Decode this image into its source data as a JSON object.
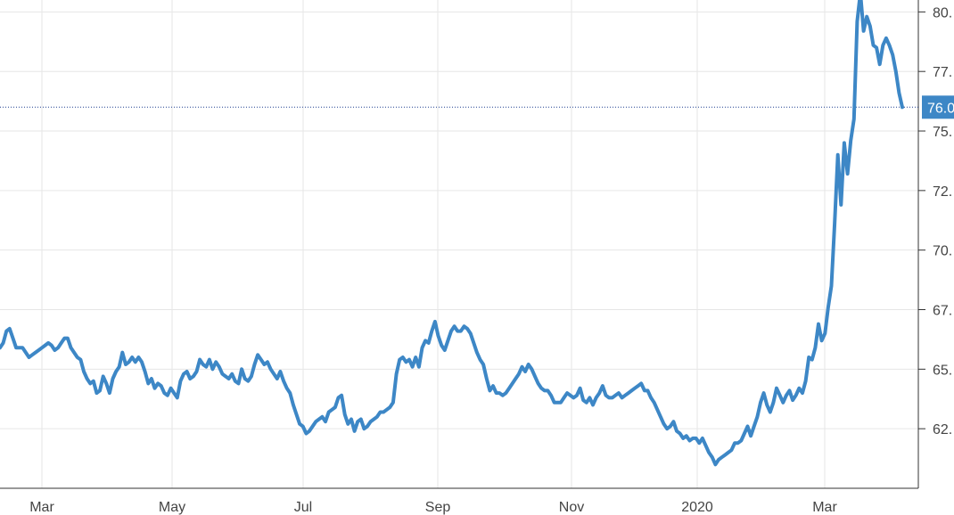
{
  "chart_data": {
    "type": "line",
    "title": "",
    "xlabel": "",
    "ylabel": "",
    "x_tick_labels": [
      "Mar",
      "May",
      "Jul",
      "Sep",
      "Nov",
      "2020",
      "Mar"
    ],
    "y_tick_labels": [
      "62.",
      "65.",
      "67.",
      "70.",
      "72.",
      "75.",
      "77.",
      "80."
    ],
    "y_tick_values": [
      62.5,
      65,
      67.5,
      70,
      72.5,
      75,
      77.5,
      80
    ],
    "ylim": [
      60,
      80.5
    ],
    "grid": true,
    "current_value": 76.0,
    "current_value_label": "76.0",
    "colors": {
      "line": "#3d87c6",
      "grid": "#e6e6e6",
      "current_line": "#1f3f8f",
      "current_label_bg": "#3d87c6",
      "axis": "#333333"
    },
    "series": [
      {
        "values": [
          65.9,
          66.1,
          66.6,
          66.7,
          66.3,
          65.9,
          65.9,
          65.9,
          65.7,
          65.5,
          65.6,
          65.7,
          65.8,
          65.9,
          66.0,
          66.1,
          66.0,
          65.8,
          65.9,
          66.1,
          66.3,
          66.3,
          65.9,
          65.7,
          65.5,
          65.4,
          64.9,
          64.6,
          64.4,
          64.5,
          64.0,
          64.1,
          64.7,
          64.4,
          64.0,
          64.6,
          64.9,
          65.1,
          65.7,
          65.2,
          65.3,
          65.5,
          65.3,
          65.5,
          65.3,
          64.9,
          64.4,
          64.6,
          64.2,
          64.4,
          64.3,
          64.0,
          63.9,
          64.2,
          64.0,
          63.8,
          64.5,
          64.8,
          64.9,
          64.6,
          64.7,
          64.9,
          65.4,
          65.2,
          65.1,
          65.4,
          65.0,
          65.3,
          65.1,
          64.8,
          64.7,
          64.6,
          64.8,
          64.5,
          64.4,
          65.0,
          64.6,
          64.5,
          64.7,
          65.2,
          65.6,
          65.4,
          65.2,
          65.3,
          65.0,
          64.8,
          64.6,
          64.9,
          64.5,
          64.2,
          64.0,
          63.5,
          63.1,
          62.7,
          62.6,
          62.3,
          62.4,
          62.6,
          62.8,
          62.9,
          63.0,
          62.8,
          63.2,
          63.3,
          63.4,
          63.8,
          63.9,
          63.1,
          62.7,
          62.9,
          62.4,
          62.8,
          62.9,
          62.5,
          62.6,
          62.8,
          62.9,
          63.0,
          63.2,
          63.2,
          63.3,
          63.4,
          63.6,
          64.8,
          65.4,
          65.5,
          65.3,
          65.4,
          65.1,
          65.5,
          65.1,
          65.9,
          66.2,
          66.1,
          66.6,
          67.0,
          66.4,
          66.0,
          65.8,
          66.2,
          66.6,
          66.8,
          66.6,
          66.6,
          66.8,
          66.7,
          66.5,
          66.1,
          65.7,
          65.4,
          65.2,
          64.6,
          64.1,
          64.3,
          64.0,
          64.0,
          63.9,
          64.0,
          64.2,
          64.4,
          64.6,
          64.8,
          65.1,
          64.9,
          65.2,
          65.0,
          64.7,
          64.4,
          64.2,
          64.1,
          64.1,
          63.9,
          63.6,
          63.6,
          63.6,
          63.8,
          64.0,
          63.9,
          63.8,
          63.9,
          64.2,
          63.7,
          63.6,
          63.8,
          63.5,
          63.8,
          64.0,
          64.3,
          63.9,
          63.8,
          63.8,
          63.9,
          64.0,
          63.8,
          63.9,
          64.0,
          64.1,
          64.2,
          64.3,
          64.4,
          64.1,
          64.1,
          63.8,
          63.6,
          63.3,
          63.0,
          62.7,
          62.5,
          62.6,
          62.8,
          62.4,
          62.3,
          62.1,
          62.2,
          62.0,
          62.1,
          62.1,
          61.9,
          62.1,
          61.8,
          61.5,
          61.3,
          61.0,
          61.2,
          61.3,
          61.4,
          61.5,
          61.6,
          61.9,
          61.9,
          62.0,
          62.3,
          62.6,
          62.2,
          62.6,
          63.0,
          63.6,
          64.0,
          63.5,
          63.2,
          63.6,
          64.2,
          63.9,
          63.6,
          63.9,
          64.1,
          63.7,
          63.9,
          64.2,
          64.0,
          64.5,
          65.5,
          65.4,
          65.9,
          66.9,
          66.2,
          66.5,
          67.6,
          68.5,
          71.1,
          74.0,
          71.9,
          74.5,
          73.2,
          74.6,
          75.5,
          79.6,
          80.8,
          79.2,
          79.8,
          79.4,
          78.6,
          78.5,
          77.8,
          78.6,
          78.9,
          78.6,
          78.2,
          77.5,
          76.6,
          76.0
        ]
      }
    ]
  }
}
